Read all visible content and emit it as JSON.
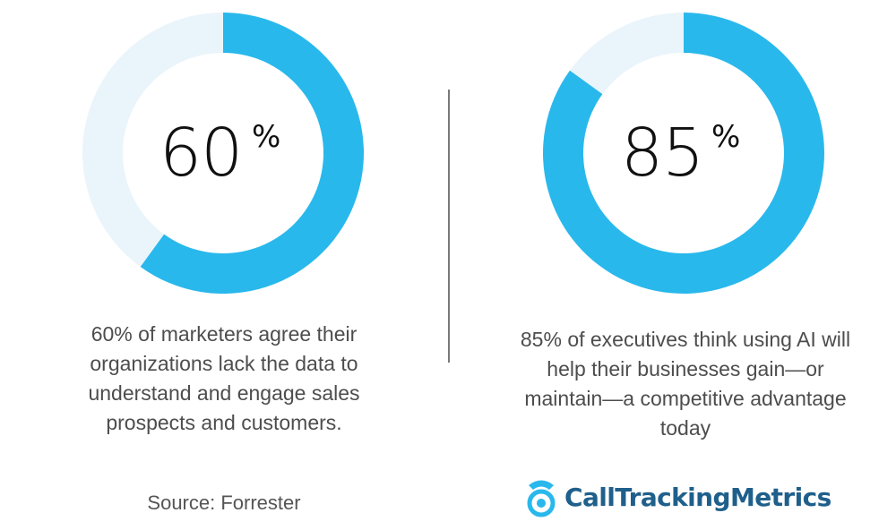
{
  "chart_data": [
    {
      "type": "pie",
      "values": [
        60,
        40
      ],
      "big_number": "60",
      "unit": "%",
      "description": "60% of marketers agree their organizations lack the data to understand and engage sales prospects and customers.",
      "colors": {
        "filled": "#29b8ec",
        "remaining": "#eaf5fb"
      }
    },
    {
      "type": "pie",
      "values": [
        85,
        15
      ],
      "big_number": "85",
      "unit": "%",
      "description": "85% of executives think using AI will help their businesses gain—or maintain—a competitive advantage today",
      "colors": {
        "filled": "#29b8ec",
        "remaining": "#eaf5fb"
      }
    }
  ],
  "source": "Source: Forrester",
  "brand": {
    "name": "CallTrackingMetrics",
    "icon": "phone-icon",
    "color": "#1f5f8b",
    "accent": "#29b8ec"
  }
}
